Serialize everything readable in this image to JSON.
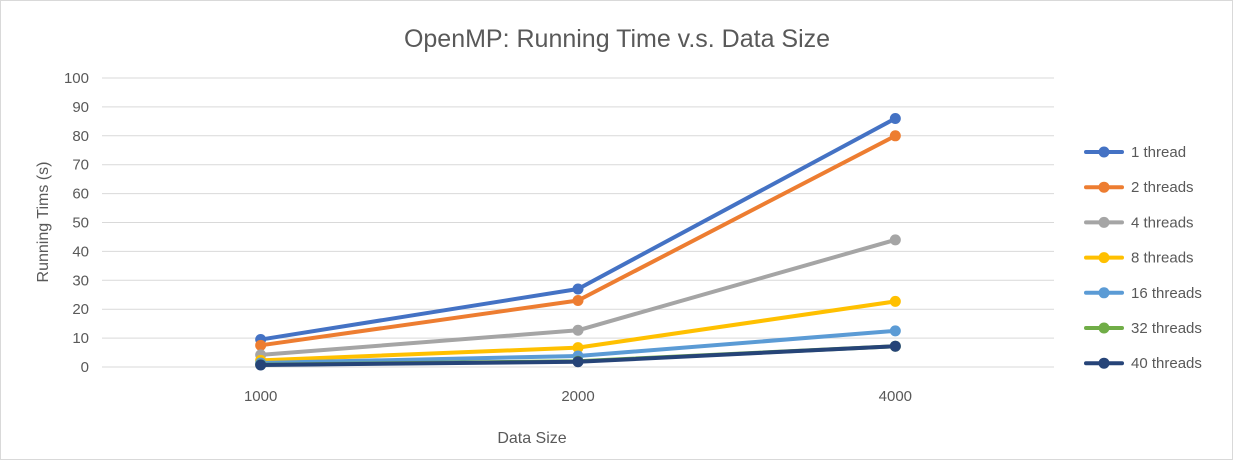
{
  "chart_data": {
    "type": "line",
    "title": "OpenMP: Running Time v.s. Data Size",
    "xlabel": "Data Size",
    "ylabel": "Running Tims (s)",
    "categories": [
      "1000",
      "2000",
      "4000"
    ],
    "ylim": [
      0,
      100
    ],
    "yticks": [
      0,
      10,
      20,
      30,
      40,
      50,
      60,
      70,
      80,
      90,
      100
    ],
    "grid": true,
    "legend_position": "right",
    "series": [
      {
        "name": "1 thread",
        "color": "#4472C4",
        "values": [
          9.5,
          27,
          86
        ]
      },
      {
        "name": "2 threads",
        "color": "#ED7D31",
        "values": [
          7.5,
          23,
          80
        ]
      },
      {
        "name": "4 threads",
        "color": "#A5A5A5",
        "values": [
          4.2,
          12.7,
          44
        ]
      },
      {
        "name": "8 threads",
        "color": "#FFC000",
        "values": [
          2.3,
          6.7,
          22.7
        ]
      },
      {
        "name": "16 threads",
        "color": "#5B9BD5",
        "values": [
          1.4,
          3.8,
          12.5
        ]
      },
      {
        "name": "32 threads",
        "color": "#70AD47",
        "values": [
          0.8,
          2.0,
          7.2
        ]
      },
      {
        "name": "40 threads",
        "color": "#264478",
        "values": [
          0.7,
          1.8,
          7.2
        ]
      }
    ]
  }
}
